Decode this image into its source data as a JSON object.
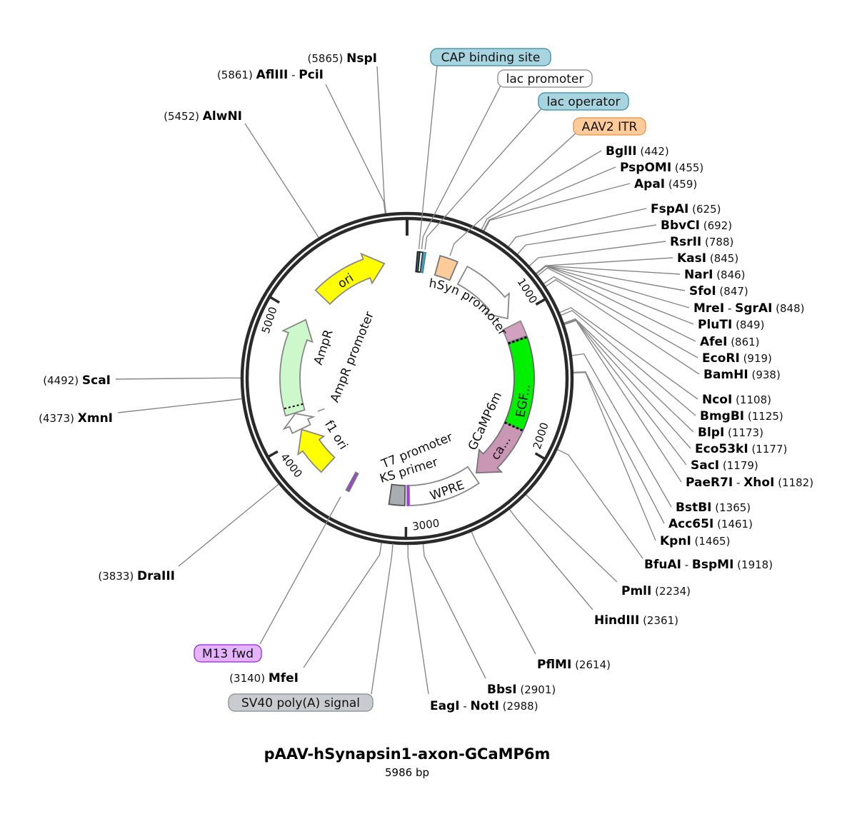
{
  "map": {
    "title": "pAAV-hSynapsin1-axon-GCaMP6m",
    "length_bp": 5986,
    "length_label": "5986 bp",
    "ring_color": "#2a2a2a"
  },
  "ticks": [
    {
      "bp": 1000,
      "label": "1000"
    },
    {
      "bp": 2000,
      "label": "2000"
    },
    {
      "bp": 3000,
      "label": "3000"
    },
    {
      "bp": 4000,
      "label": "4000"
    },
    {
      "bp": 5000,
      "label": "5000"
    }
  ],
  "sites": [
    {
      "name": "BglII",
      "pos": 442
    },
    {
      "name": "PspOMI",
      "pos": 455
    },
    {
      "name": "ApaI",
      "pos": 459
    },
    {
      "name": "FspAI",
      "pos": 625
    },
    {
      "name": "BbvCI",
      "pos": 692
    },
    {
      "name": "RsrII",
      "pos": 788
    },
    {
      "name": "KasI",
      "pos": 845
    },
    {
      "name": "NarI",
      "pos": 846
    },
    {
      "name": "SfoI",
      "pos": 847
    },
    {
      "name": "MreI - SgrAI",
      "pos": 848
    },
    {
      "name": "PluTI",
      "pos": 849
    },
    {
      "name": "AfeI",
      "pos": 861
    },
    {
      "name": "EcoRI",
      "pos": 919
    },
    {
      "name": "BamHI",
      "pos": 938
    },
    {
      "name": "NcoI",
      "pos": 1108
    },
    {
      "name": "BmgBI",
      "pos": 1125
    },
    {
      "name": "BlpI",
      "pos": 1173
    },
    {
      "name": "Eco53kI",
      "pos": 1177
    },
    {
      "name": "SacI",
      "pos": 1179
    },
    {
      "name": "PaeR7I - XhoI",
      "pos": 1182
    },
    {
      "name": "BstBI",
      "pos": 1365
    },
    {
      "name": "Acc65I",
      "pos": 1461
    },
    {
      "name": "KpnI",
      "pos": 1465
    },
    {
      "name": "BfuAI - BspMI",
      "pos": 1918
    },
    {
      "name": "PmlI",
      "pos": 2234
    },
    {
      "name": "HindIII",
      "pos": 2361
    },
    {
      "name": "PflMI",
      "pos": 2614
    },
    {
      "name": "BbsI",
      "pos": 2901
    },
    {
      "name": "EagI - NotI",
      "pos": 2988
    },
    {
      "name": "MfeI",
      "pos": 3140
    },
    {
      "name": "DraIII",
      "pos": 3833
    },
    {
      "name": "XmnI",
      "pos": 4373
    },
    {
      "name": "ScaI",
      "pos": 4492
    },
    {
      "name": "AlwNI",
      "pos": 5452
    },
    {
      "name": "AflIII - PciI",
      "pos": 5861
    },
    {
      "name": "NspI",
      "pos": 5865
    }
  ],
  "features": [
    {
      "name": "CAP binding site",
      "start": 78,
      "end": 96,
      "shape": "box",
      "fill": "#3d6f80",
      "stroke": "#222"
    },
    {
      "name": "lac promoter",
      "start": 96,
      "end": 118,
      "shape": "box",
      "fill": "#ffffff",
      "stroke": "#222"
    },
    {
      "name": "lac operator",
      "start": 125,
      "end": 140,
      "shape": "box",
      "fill": "#5bb5cf",
      "stroke": "#3b8aa0"
    },
    {
      "name": "AAV2 ITR",
      "start": 250,
      "end": 390,
      "shape": "box",
      "fill": "#ffcc99",
      "stroke": "#777"
    },
    {
      "name": "hSyn promoter",
      "start": 470,
      "end": 985,
      "shape": "arrow",
      "fill": "#ffffff",
      "stroke": "#888"
    },
    {
      "name": "",
      "start": 1050,
      "end": 1170,
      "shape": "box",
      "fill": "#d4a0c0",
      "stroke": "#888"
    },
    {
      "name": "EGF...",
      "start": 1180,
      "end": 1900,
      "shape": "box",
      "fill": "#00f000",
      "stroke": "#666"
    },
    {
      "name": "ca...",
      "start": 1900,
      "end": 2390,
      "shape": "arrow",
      "fill": "#c996b4",
      "stroke": "#777"
    },
    {
      "name": "WPRE",
      "start": 2420,
      "end": 2975,
      "shape": "box",
      "fill": "#ffffff",
      "stroke": "#888"
    },
    {
      "name": "",
      "start": 2982,
      "end": 2992,
      "shape": "box",
      "fill": "#a040e0",
      "stroke": "#a040e0"
    },
    {
      "name": "",
      "start": 3010,
      "end": 3130,
      "shape": "box",
      "fill": "#a8adb2",
      "stroke": "#555"
    },
    {
      "name": "",
      "start": 3445,
      "end": 3470,
      "shape": "box",
      "fill": "#a040e0",
      "stroke": "#777"
    },
    {
      "name": "f1 ori",
      "start": 3700,
      "end": 4060,
      "shape": "arrow",
      "fill": "#ffff00",
      "stroke": "#888"
    },
    {
      "name": "AmpR promoter",
      "start": 4065,
      "end": 4200,
      "shape": "arrow",
      "fill": "#ffffff",
      "stroke": "#888"
    },
    {
      "name": "AmpR",
      "start": 4205,
      "end": 4990,
      "shape": "arrow",
      "fill": "#ccf8cc",
      "stroke": "#888"
    },
    {
      "name": "ori",
      "start": 5220,
      "end": 5800,
      "shape": "arrow",
      "fill": "#ffff00",
      "stroke": "#888"
    }
  ],
  "inner_labels": {
    "hsyn": "hSyn promoter",
    "gcamp": "GCaMP6m",
    "t7": "T7 promoter",
    "ks": "KS primer",
    "ampr": "AmpR",
    "ampr_promoter": "AmpR promoter",
    "f1": "f1 ori",
    "ori": "ori",
    "egfp": "EGF...",
    "ca": "ca...",
    "wpre": "WPRE"
  },
  "boxed_labels": [
    {
      "text": "CAP binding site",
      "bp": 87,
      "fill": "#a8d4e0",
      "stroke": "#4a9ab0"
    },
    {
      "text": "lac promoter",
      "bp": 107,
      "fill": "#ffffff",
      "stroke": "#999999"
    },
    {
      "text": "lac operator",
      "bp": 132,
      "fill": "#a8d4e0",
      "stroke": "#4a9ab0"
    },
    {
      "text": "AAV2 ITR",
      "bp": 320,
      "fill": "#ffcc99",
      "stroke": "#e0a060"
    },
    {
      "text": "M13 fwd",
      "bp": 3480,
      "fill": "#e6b3ff",
      "stroke": "#a040e0"
    },
    {
      "text": "SV40 poly(A) signal",
      "bp": 3075,
      "fill": "#c8ccd0",
      "stroke": "#999999"
    }
  ]
}
